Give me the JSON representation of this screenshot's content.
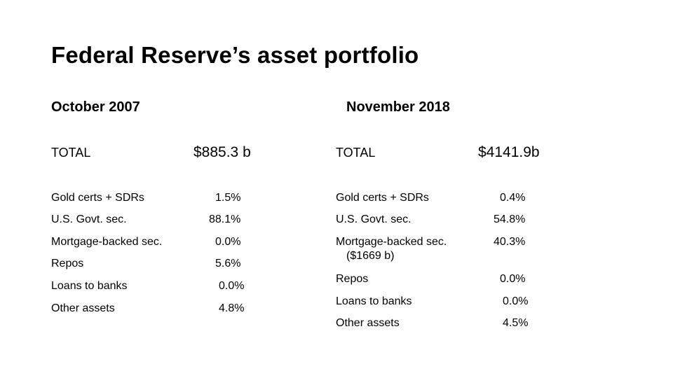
{
  "title": "Federal Reserve’s asset portfolio",
  "left": {
    "heading": "October 2007",
    "total_label": "TOTAL",
    "total_value": "$885.3 b",
    "rows": [
      {
        "label": "Gold certs + SDRs",
        "value": "1.5%"
      },
      {
        "label": "U.S. Govt. sec.",
        "value": "88.1%"
      },
      {
        "label": "Mortgage-backed sec.",
        "value": "0.0%"
      },
      {
        "label": "Repos",
        "value": "5.6%"
      },
      {
        "label": "Loans to banks",
        "value": "0.0%"
      },
      {
        "label": "Other assets",
        "value": "4.8%"
      }
    ]
  },
  "right": {
    "heading": "November 2018",
    "total_label": "TOTAL",
    "total_value": "$4141.9b",
    "rows": [
      {
        "label": "Gold certs + SDRs",
        "value": "0.4%"
      },
      {
        "label": "U.S. Govt. sec.",
        "value": "54.8%"
      },
      {
        "label": "Mortgage-backed sec.",
        "sublabel": "($1669 b)",
        "value": "40.3%"
      },
      {
        "label": "Repos",
        "value": "0.0%"
      },
      {
        "label": "Loans to banks",
        "value": "0.0%"
      },
      {
        "label": "Other assets",
        "value": "4.5%"
      }
    ]
  }
}
